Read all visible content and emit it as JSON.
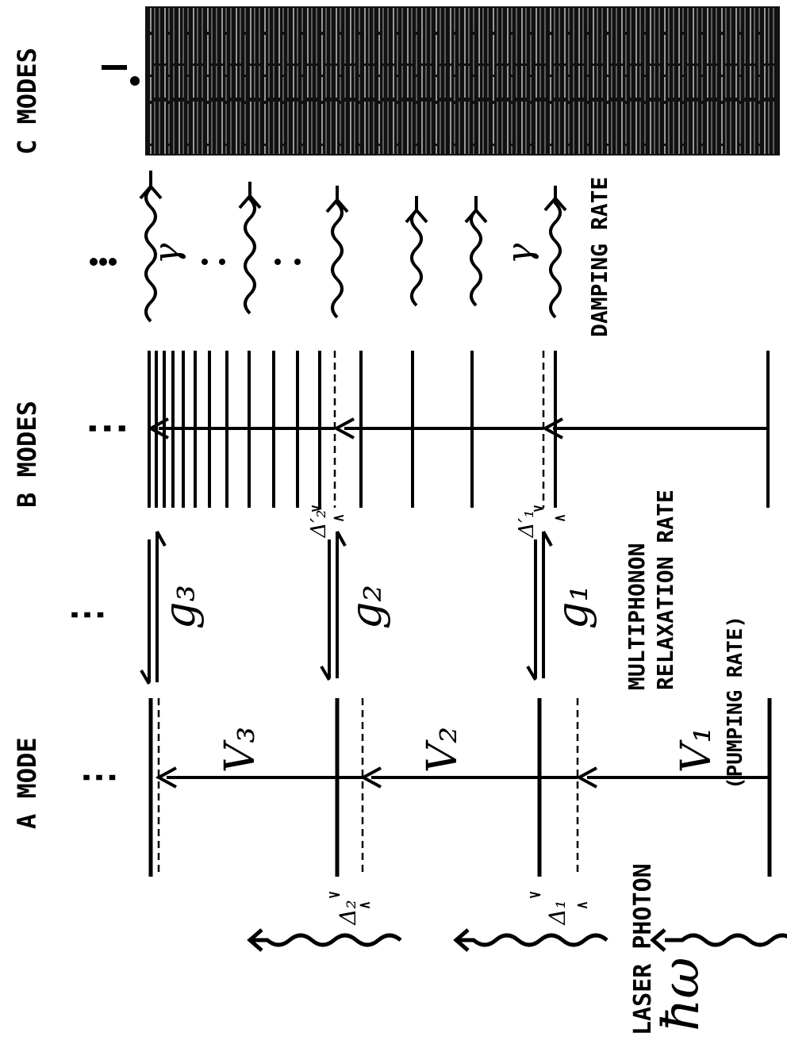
{
  "labels": {
    "a_mode": "A MODE",
    "b_modes": "B MODES",
    "c_modes": "C MODES",
    "laser_photon": "LASER PHOTON",
    "hbar_omega": "ħω",
    "multiphonon": "MULTIPHONON",
    "relaxation_rate": "RELAXATION RATE",
    "pumping_rate": "(PUMPING RATE)",
    "damping_rate": "DAMPING RATE"
  },
  "symbols": {
    "v1": "V₁",
    "v2": "V₂",
    "v3": "V₃",
    "g1": "g₁",
    "g2": "g₂",
    "g3": "g₃",
    "delta1": "Δ₁",
    "delta2": "Δ₂",
    "delta1p": "Δ′₁",
    "delta2p": "Δ′₂",
    "gamma": "γ"
  },
  "ellipsis": "⋮"
}
